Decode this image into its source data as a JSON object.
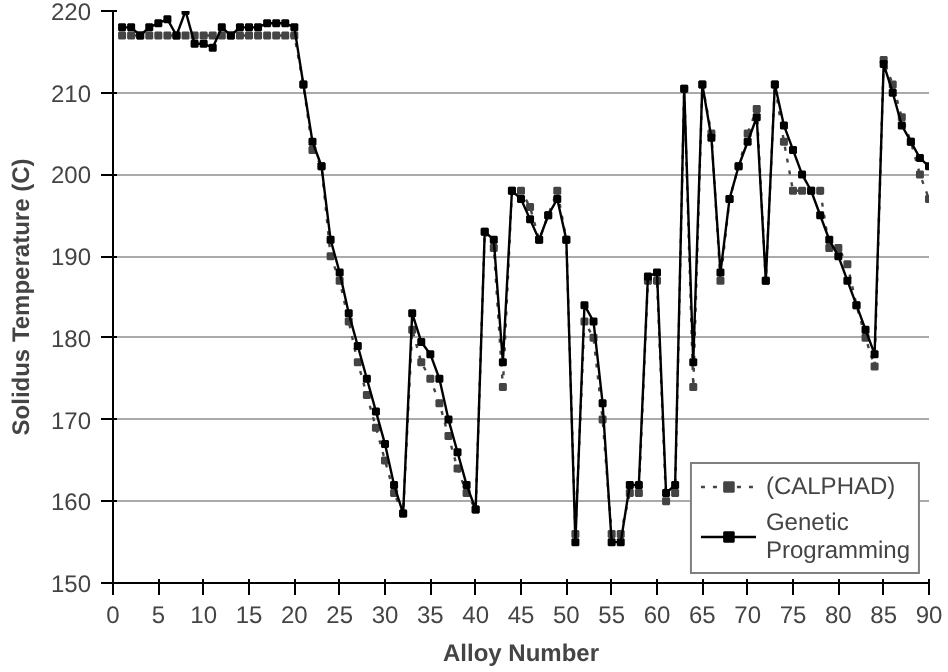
{
  "chart_data": {
    "type": "line",
    "xlabel": "Alloy Number",
    "ylabel": "Solidus Temperature (C)",
    "x": [
      1,
      2,
      3,
      4,
      5,
      6,
      7,
      8,
      9,
      10,
      11,
      12,
      13,
      14,
      15,
      16,
      17,
      18,
      19,
      20,
      21,
      22,
      23,
      24,
      25,
      26,
      27,
      28,
      29,
      30,
      31,
      32,
      33,
      34,
      35,
      36,
      37,
      38,
      39,
      40,
      41,
      42,
      43,
      44,
      45,
      46,
      47,
      48,
      49,
      50,
      51,
      52,
      53,
      54,
      55,
      56,
      57,
      58,
      59,
      60,
      61,
      62,
      63,
      64,
      65,
      66,
      67,
      68,
      69,
      70,
      71,
      72,
      73,
      74,
      75,
      76,
      77,
      78,
      79,
      80,
      81,
      82,
      83,
      84,
      85,
      86,
      87,
      88,
      89,
      90
    ],
    "series": [
      {
        "name": "(CALPHAD)",
        "color": "#444444",
        "line_style": "dotted",
        "values": [
          217,
          217,
          217,
          217,
          217,
          217,
          217,
          217,
          217,
          217,
          217,
          217,
          217,
          217,
          217,
          217,
          217,
          217,
          217,
          217,
          211,
          203,
          201,
          190,
          187,
          182,
          177,
          173,
          169,
          165,
          161,
          158.5,
          181,
          177,
          175,
          172,
          168,
          164,
          161,
          159,
          193,
          191,
          174,
          198,
          198,
          196,
          192,
          195,
          198,
          192,
          156,
          182,
          180,
          170,
          156,
          156,
          161,
          161,
          187,
          187,
          160,
          161,
          210.5,
          174,
          211,
          205,
          187,
          197,
          201,
          205,
          208,
          187,
          211,
          204,
          198,
          198,
          198,
          198,
          191,
          191,
          189,
          184,
          180,
          176.5,
          214,
          211,
          207,
          204,
          200,
          197
        ]
      },
      {
        "name": "Genetic Programming",
        "color": "#000000",
        "line_style": "solid",
        "values": [
          218,
          218,
          217,
          218,
          218.5,
          219,
          217,
          220,
          216,
          216,
          215.5,
          218,
          217,
          218,
          218,
          218,
          218.5,
          218.5,
          218.5,
          218,
          211,
          204,
          201,
          192,
          188,
          183,
          179,
          175,
          171,
          167,
          162,
          158.5,
          183,
          179.5,
          178,
          175,
          170,
          166,
          162,
          159,
          193,
          192,
          177,
          198,
          197,
          194.5,
          192,
          195,
          197,
          192,
          155,
          184,
          182,
          172,
          155,
          155,
          162,
          162,
          187.5,
          188,
          161,
          162,
          210.5,
          177,
          211,
          204.5,
          188,
          197,
          201,
          204,
          207,
          187,
          211,
          206,
          203,
          200,
          198,
          195,
          192,
          190,
          187,
          184,
          181,
          178,
          213.5,
          210,
          206,
          204,
          202,
          201
        ]
      }
    ],
    "xlim": [
      0,
      90
    ],
    "xticks": [
      0,
      5,
      10,
      15,
      20,
      25,
      30,
      35,
      40,
      45,
      50,
      55,
      60,
      65,
      70,
      75,
      80,
      85,
      90
    ],
    "ylim": [
      150,
      220
    ],
    "yticks": [
      150,
      160,
      170,
      180,
      190,
      200,
      210,
      220
    ],
    "grid": "y",
    "legend": "bottom right",
    "marker": "square"
  }
}
